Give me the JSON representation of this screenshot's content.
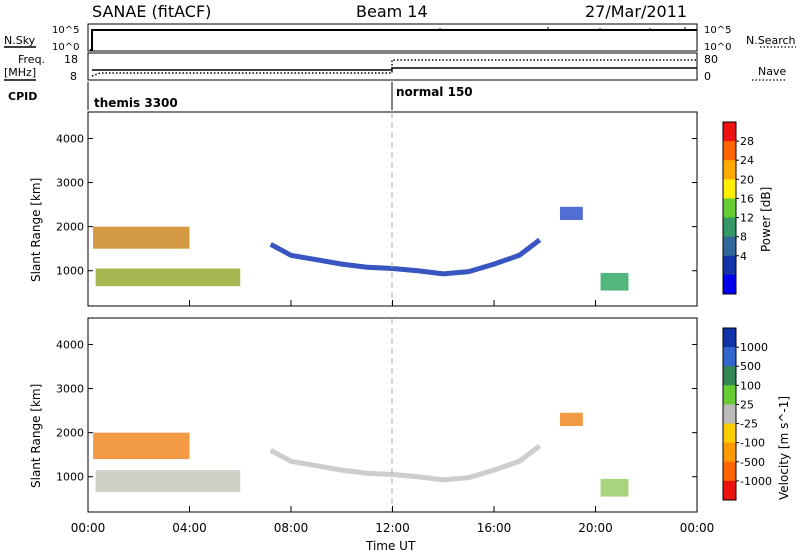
{
  "header": {
    "station": "SANAE (fitACF)",
    "beam": "Beam 14",
    "date": "27/Mar/2011"
  },
  "top_panels": {
    "nsky_label": "N.Sky",
    "nsky_ticks": [
      "10^5",
      "10^0"
    ],
    "nsearch_label": "N.Search",
    "nsearch_ticks": [
      "10^5",
      "10^0"
    ],
    "freq_label": "Freq.",
    "freq_unit": "[MHz]",
    "freq_ticks": [
      18,
      8
    ],
    "nave_label": "Nave",
    "nave_ticks": [
      80,
      0
    ],
    "cpid_label": "CPID",
    "cpid_segments": [
      {
        "name": "themis 3300",
        "start": 0,
        "end": 12
      },
      {
        "name": "normal 150",
        "start": 12,
        "end": 24
      }
    ]
  },
  "chart_data": [
    {
      "type": "heatmap",
      "name": "power-panel",
      "x_range_hours": [
        0,
        24
      ],
      "ylabel": "Slant Range [km]",
      "ylim": [
        200,
        4600
      ],
      "yticks": [
        1000,
        2000,
        3000,
        4000
      ],
      "colorbar": {
        "label": "Power [dB]",
        "ticks": [
          28,
          24,
          20,
          16,
          12,
          8,
          4
        ],
        "colors": [
          "#ee1111",
          "#ff6600",
          "#ffaa00",
          "#ffee00",
          "#66cc33",
          "#339966",
          "#336699",
          "#1133aa",
          "#0000ee"
        ]
      },
      "echo_regions": [
        {
          "x0": 0.2,
          "x1": 4.0,
          "y0": 1500,
          "y1": 2000,
          "color": "#cc8822"
        },
        {
          "x0": 0.3,
          "x1": 6.0,
          "y0": 650,
          "y1": 1050,
          "color": "#99aa33"
        },
        {
          "x0": 20.2,
          "x1": 21.3,
          "y0": 550,
          "y1": 950,
          "color": "#33aa66"
        },
        {
          "x0": 18.6,
          "x1": 19.5,
          "y0": 2150,
          "y1": 2450,
          "color": "#3355cc"
        }
      ]
    },
    {
      "type": "heatmap",
      "name": "velocity-panel",
      "x_range_hours": [
        0,
        24
      ],
      "ylabel": "Slant Range [km]",
      "ylim": [
        200,
        4600
      ],
      "yticks": [
        1000,
        2000,
        3000,
        4000
      ],
      "xlabel": "Time UT",
      "xticks": [
        "00:00",
        "04:00",
        "08:00",
        "12:00",
        "16:00",
        "20:00",
        "00:00"
      ],
      "colorbar": {
        "label": "Velocity [m s^-1]",
        "ticks": [
          1000,
          500,
          100,
          25,
          -25,
          -100,
          -500,
          -1000
        ],
        "colors": [
          "#1133aa",
          "#3366cc",
          "#338855",
          "#66cc33",
          "#bbbbbb",
          "#ffcc00",
          "#ff9900",
          "#ff6600",
          "#ee1111"
        ]
      },
      "echo_regions": [
        {
          "x0": 0.2,
          "x1": 4.0,
          "y0": 1400,
          "y1": 2000,
          "color": "#ee8822"
        },
        {
          "x0": 0.3,
          "x1": 6.0,
          "y0": 650,
          "y1": 1150,
          "color": "#c8c8c0"
        },
        {
          "x0": 20.2,
          "x1": 21.3,
          "y0": 550,
          "y1": 950,
          "color": "#99cc66"
        },
        {
          "x0": 18.6,
          "x1": 19.5,
          "y0": 2150,
          "y1": 2450,
          "color": "#ee8822"
        }
      ]
    }
  ],
  "ionospheric_band": {
    "x": [
      7.2,
      8.0,
      9.0,
      10.0,
      11.0,
      12.0,
      13.0,
      14.0,
      15.0,
      16.0,
      17.0,
      17.8
    ],
    "y": [
      1600,
      1350,
      1250,
      1150,
      1080,
      1050,
      1000,
      930,
      980,
      1150,
      1350,
      1700
    ],
    "power_color": "#2244bb",
    "velocity_color": "#c8c8c8"
  }
}
